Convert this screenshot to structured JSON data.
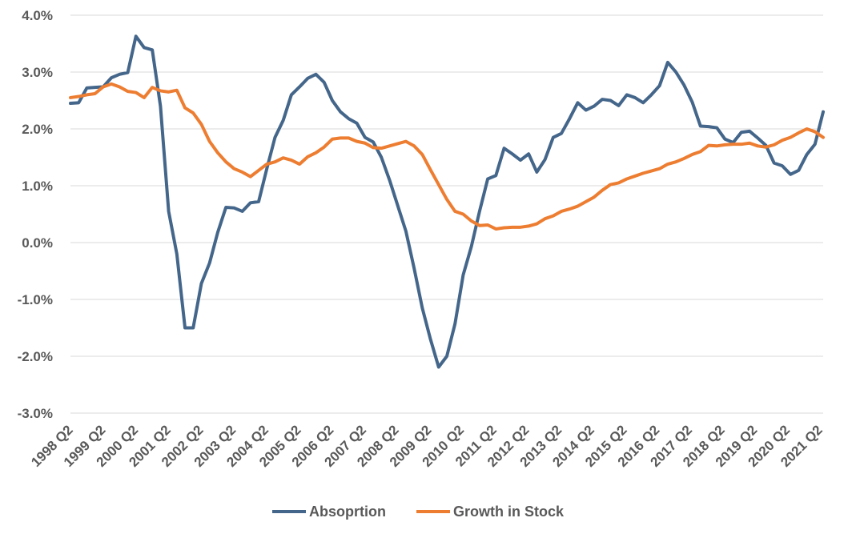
{
  "chart_data": {
    "type": "line",
    "title": "",
    "xlabel": "",
    "ylabel": "",
    "ylim": [
      -3.0,
      4.0
    ],
    "y_ticks": [
      "4.0%",
      "3.0%",
      "2.0%",
      "1.0%",
      "0.0%",
      "-1.0%",
      "-2.0%",
      "-3.0%"
    ],
    "y_tick_values": [
      4,
      3,
      2,
      1,
      0,
      -1,
      -2,
      -3
    ],
    "x_tick_labels": [
      "1998 Q2",
      "1999 Q2",
      "2000 Q2",
      "2001 Q2",
      "2002 Q2",
      "2003 Q2",
      "2004 Q2",
      "2005 Q2",
      "2006 Q2",
      "2007 Q2",
      "2008 Q2",
      "2009 Q2",
      "2010 Q2",
      "2011 Q2",
      "2012 Q2",
      "2013 Q2",
      "2014 Q2",
      "2015 Q2",
      "2016 Q2",
      "2017 Q2",
      "2018 Q2",
      "2019 Q2",
      "2020 Q2",
      "2021 Q2"
    ],
    "grid": "horizontal",
    "legend_position": "bottom",
    "x_start": "1998 Q2",
    "x_end": "2021 Q2",
    "series": [
      {
        "name": "Absoprtion",
        "color": "#44668a",
        "values": [
          2.45,
          2.46,
          2.72,
          2.73,
          2.74,
          2.9,
          2.96,
          2.99,
          3.63,
          3.43,
          3.39,
          2.4,
          0.55,
          -0.2,
          -1.5,
          -1.5,
          -0.72,
          -0.36,
          0.18,
          0.62,
          0.61,
          0.55,
          0.7,
          0.72,
          1.3,
          1.85,
          2.15,
          2.6,
          2.74,
          2.89,
          2.96,
          2.82,
          2.5,
          2.3,
          2.18,
          2.1,
          1.85,
          1.77,
          1.5,
          1.1,
          0.65,
          0.2,
          -0.45,
          -1.15,
          -1.7,
          -2.19,
          -2.0,
          -1.43,
          -0.57,
          -0.07,
          0.55,
          1.12,
          1.18,
          1.66,
          1.56,
          1.45,
          1.56,
          1.24,
          1.46,
          1.85,
          1.92,
          2.18,
          2.46,
          2.33,
          2.4,
          2.52,
          2.5,
          2.41,
          2.6,
          2.55,
          2.46,
          2.6,
          2.76,
          3.17,
          3.0,
          2.77,
          2.47,
          2.05,
          2.04,
          2.02,
          1.82,
          1.76,
          1.94,
          1.96,
          1.84,
          1.71,
          1.4,
          1.35,
          1.2,
          1.27,
          1.55,
          1.73,
          2.3
        ]
      },
      {
        "name": "Growth in Stock",
        "color": "#ed7d31",
        "values": [
          2.55,
          2.57,
          2.6,
          2.62,
          2.74,
          2.79,
          2.74,
          2.66,
          2.64,
          2.55,
          2.73,
          2.67,
          2.65,
          2.68,
          2.37,
          2.28,
          2.08,
          1.78,
          1.58,
          1.42,
          1.3,
          1.24,
          1.16,
          1.27,
          1.38,
          1.42,
          1.49,
          1.45,
          1.38,
          1.51,
          1.58,
          1.68,
          1.82,
          1.84,
          1.84,
          1.78,
          1.75,
          1.67,
          1.66,
          1.7,
          1.74,
          1.78,
          1.7,
          1.55,
          1.28,
          1.02,
          0.76,
          0.55,
          0.5,
          0.38,
          0.3,
          0.31,
          0.24,
          0.26,
          0.27,
          0.27,
          0.29,
          0.33,
          0.42,
          0.47,
          0.55,
          0.59,
          0.64,
          0.72,
          0.8,
          0.92,
          1.02,
          1.05,
          1.12,
          1.17,
          1.22,
          1.26,
          1.3,
          1.38,
          1.42,
          1.48,
          1.55,
          1.6,
          1.71,
          1.7,
          1.72,
          1.73,
          1.73,
          1.75,
          1.7,
          1.68,
          1.72,
          1.8,
          1.85,
          1.93,
          2.0,
          1.95,
          1.85
        ]
      }
    ]
  }
}
